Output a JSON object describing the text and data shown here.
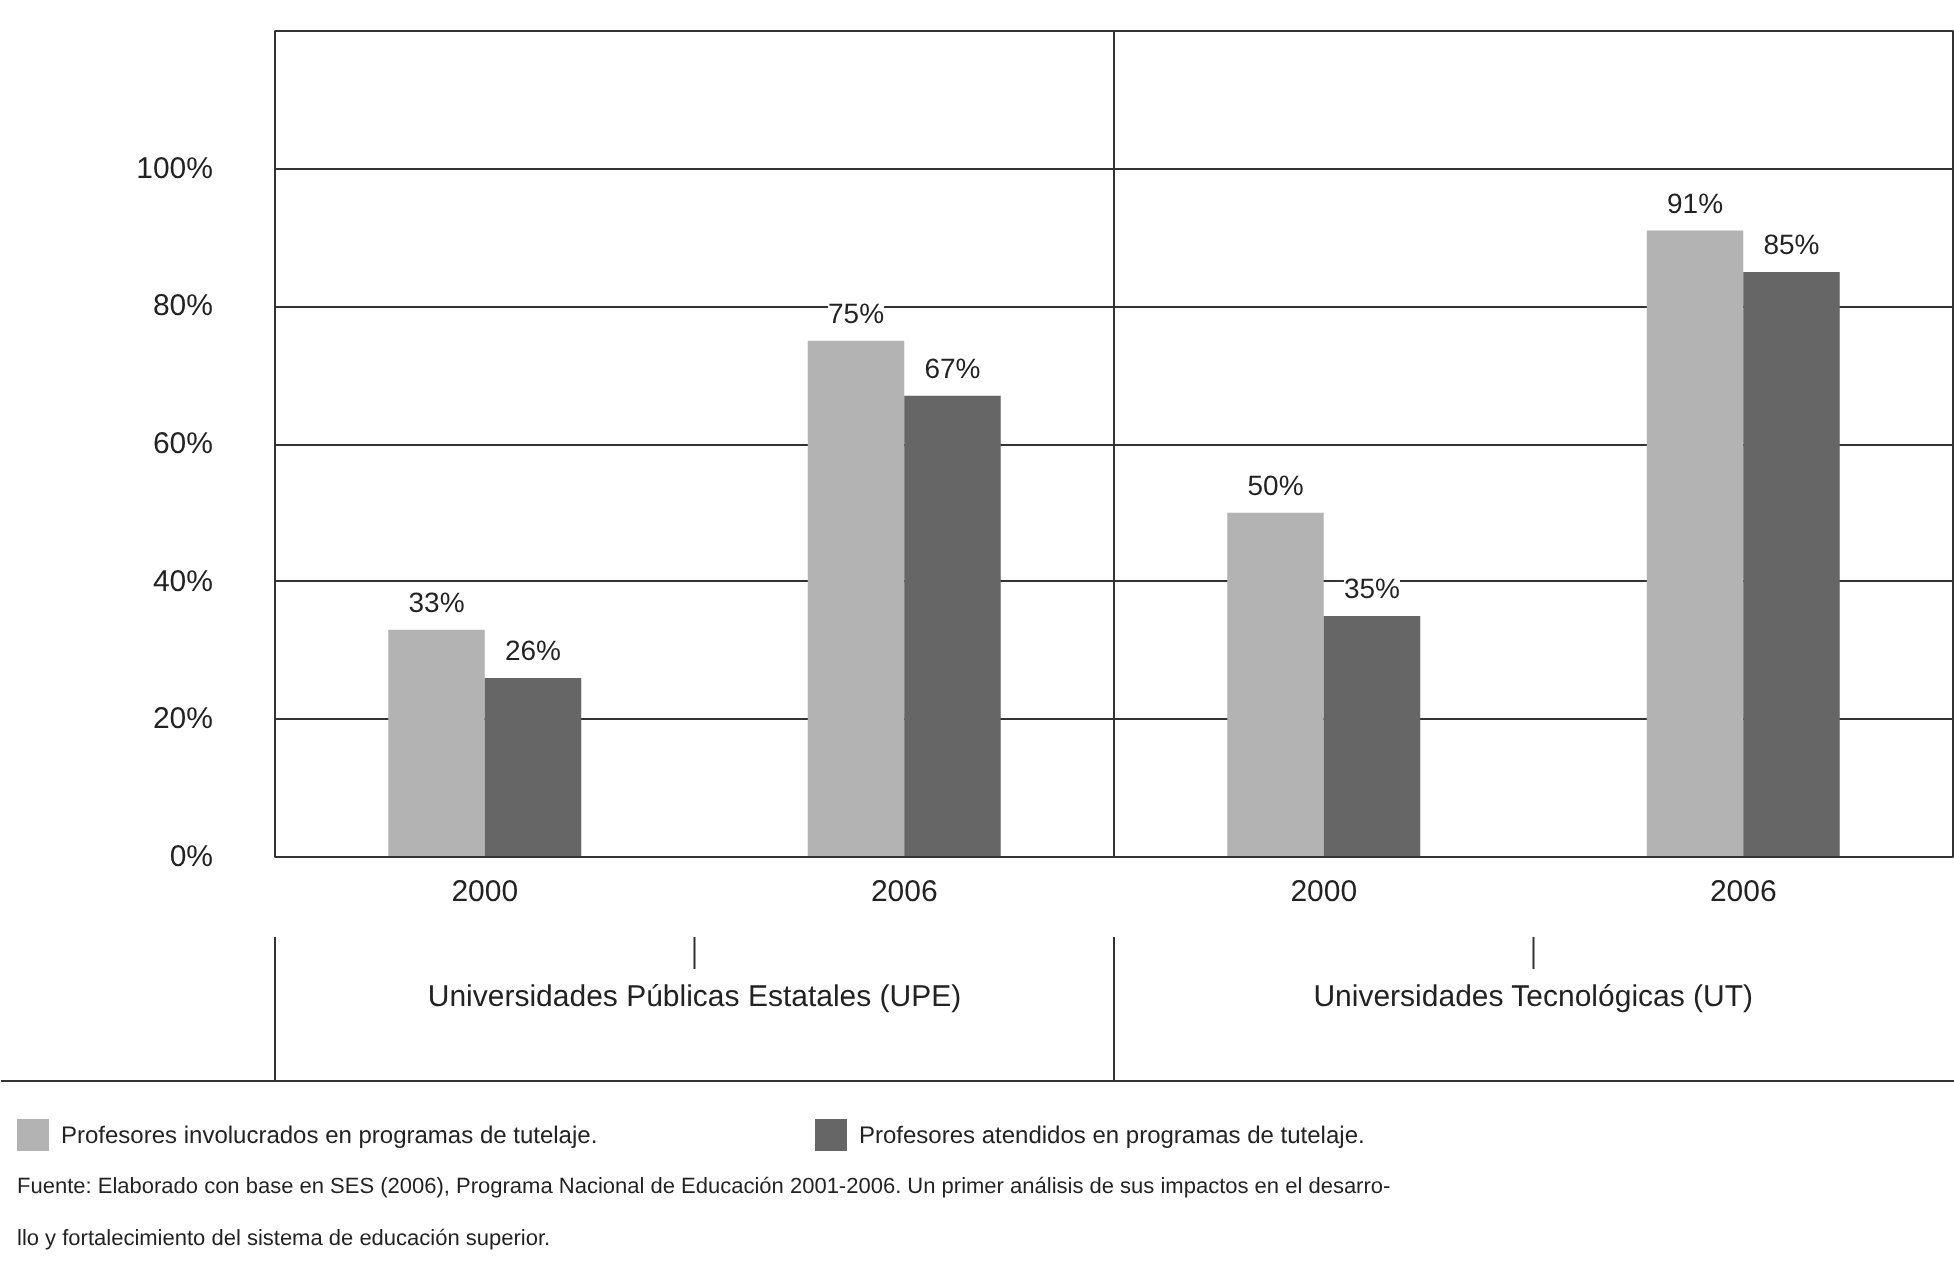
{
  "chart_data": {
    "type": "bar",
    "categories": [
      "2000",
      "2006",
      "2000",
      "2006"
    ],
    "series": [
      {
        "name": "Profesores involucrados en programas de tutelaje.",
        "color": "#b3b3b3",
        "values": [
          33,
          75,
          50,
          91
        ]
      },
      {
        "name": "Profesores atendidos en programas de tutelaje.",
        "color": "#666666",
        "values": [
          26,
          67,
          35,
          85
        ]
      }
    ],
    "ylim": [
      0,
      120
    ],
    "yticks": [
      {
        "value": 0,
        "label": "0%"
      },
      {
        "value": 20,
        "label": "20%"
      },
      {
        "value": 40,
        "label": "40%"
      },
      {
        "value": 60,
        "label": "60%"
      },
      {
        "value": 80,
        "label": "80%"
      },
      {
        "value": 100,
        "label": "100%"
      }
    ],
    "value_labels": [
      [
        "33%",
        "75%",
        "50%",
        "91%"
      ],
      [
        "26%",
        "67%",
        "35%",
        "85%"
      ]
    ],
    "grid": "y",
    "legend": "bottom",
    "annotations": [
      "Universidades Públicas Estatales (UPE)",
      "Universidades Tecnológicas (UT)",
      "Fuente: Elaborado con base en SES (2006), Programa Nacional de Educación 2001-2006. Un primer análisis de sus impactos en el desarro-",
      "llo y fortalecimiento del sistema de educación superior."
    ]
  }
}
